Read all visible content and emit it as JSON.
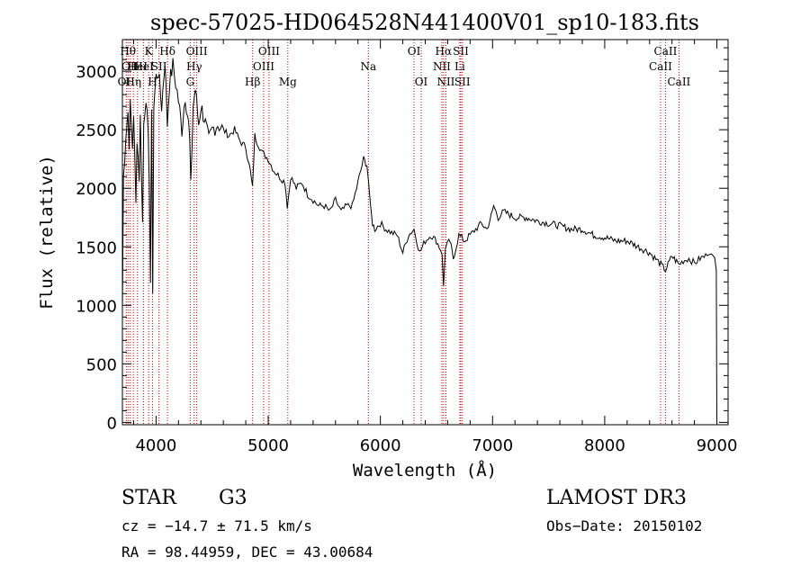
{
  "chart_data": {
    "type": "line",
    "title": "spec-57025-HD064528N441400V01_sp10-183.fits",
    "xlabel": "Wavelength (Å)",
    "ylabel": "Flux (relative)",
    "xlim": [
      3700,
      9100
    ],
    "ylim": [
      -20,
      3270
    ],
    "xticks": [
      "4000",
      "5000",
      "6000",
      "7000",
      "8000",
      "9000"
    ],
    "yticks": [
      "0",
      "500",
      "1000",
      "1500",
      "2000",
      "2500",
      "3000"
    ],
    "series": [
      {
        "x": [
          3700,
          3710,
          3730,
          3750,
          3760,
          3770,
          3790,
          3800,
          3820,
          3830,
          3850,
          3860,
          3880,
          3890,
          3910,
          3930,
          3940,
          3950,
          3960,
          3970,
          3980,
          4000,
          4020,
          4050,
          4080,
          4100,
          4120,
          4150,
          4200,
          4230,
          4260,
          4290,
          4300,
          4310,
          4330,
          4350,
          4380,
          4400,
          4430,
          4470,
          4500,
          4550,
          4600,
          4650,
          4700,
          4750,
          4800,
          4840,
          4860,
          4880,
          4900,
          4950,
          5000,
          5050,
          5100,
          5150,
          5170,
          5190,
          5200,
          5250,
          5300,
          5350,
          5400,
          5450,
          5500,
          5550,
          5600,
          5650,
          5700,
          5750,
          5800,
          5850,
          5880,
          5895,
          5910,
          5930,
          5950,
          6000,
          6050,
          6100,
          6150,
          6200,
          6250,
          6300,
          6350,
          6400,
          6450,
          6500,
          6550,
          6563,
          6580,
          6620,
          6650,
          6700,
          6750,
          6800,
          6850,
          6900,
          6950,
          7000,
          7010,
          7050,
          7100,
          7200,
          7300,
          7400,
          7500,
          7600,
          7700,
          7800,
          7900,
          8000,
          8100,
          8200,
          8300,
          8400,
          8500,
          8542,
          8600,
          8662,
          8700,
          8750,
          8800,
          8850,
          8900,
          8950,
          8980,
          8995,
          9000
        ],
        "y": [
          950,
          2100,
          2450,
          2650,
          2400,
          2700,
          2350,
          2650,
          1850,
          2450,
          2100,
          2600,
          1700,
          2550,
          2800,
          2400,
          2100,
          1200,
          2600,
          1150,
          2700,
          2950,
          3000,
          2700,
          3100,
          2550,
          2900,
          3050,
          2750,
          2500,
          2800,
          2550,
          2400,
          2000,
          2700,
          2850,
          2550,
          2700,
          2600,
          2400,
          2500,
          2550,
          2500,
          2450,
          2500,
          2400,
          2350,
          2150,
          2000,
          2450,
          2400,
          2300,
          2250,
          2150,
          2100,
          2050,
          1850,
          2000,
          2100,
          2000,
          2050,
          1950,
          1900,
          1850,
          1850,
          1800,
          1900,
          1800,
          1850,
          1850,
          2050,
          2250,
          2200,
          2050,
          1850,
          1700,
          1650,
          1700,
          1650,
          1620,
          1600,
          1450,
          1600,
          1650,
          1450,
          1550,
          1600,
          1550,
          1450,
          1150,
          1500,
          1550,
          1400,
          1600,
          1550,
          1600,
          1650,
          1700,
          1650,
          1800,
          1850,
          1750,
          1800,
          1750,
          1750,
          1720,
          1700,
          1680,
          1650,
          1650,
          1600,
          1580,
          1550,
          1550,
          1500,
          1450,
          1350,
          1300,
          1420,
          1350,
          1380,
          1400,
          1360,
          1400,
          1420,
          1440,
          1410,
          1300,
          0
        ]
      }
    ],
    "lines": [
      {
        "x": 3734,
        "name": "OII",
        "row": 2
      },
      {
        "x": 3750,
        "name": "Hθ",
        "row": 0
      },
      {
        "x": 3770,
        "name": "OII",
        "row": 1
      },
      {
        "x": 3798,
        "name": "Hη",
        "row": 2
      },
      {
        "x": 3835,
        "name": "HeI",
        "row": 1
      },
      {
        "x": 3889,
        "name": "HeI",
        "row": 1
      },
      {
        "x": 3934,
        "name": "K",
        "row": 0
      },
      {
        "x": 3969,
        "name": "H",
        "row": 2
      },
      {
        "x": 4026,
        "name": "SII",
        "row": 1
      },
      {
        "x": 4102,
        "name": "Hδ",
        "row": 0
      },
      {
        "x": 4305,
        "name": "G",
        "row": 2
      },
      {
        "x": 4340,
        "name": "Hγ",
        "row": 1
      },
      {
        "x": 4363,
        "name": "OIII",
        "row": 0
      },
      {
        "x": 4861,
        "name": "Hβ",
        "row": 2
      },
      {
        "x": 4959,
        "name": "OIII",
        "row": 1
      },
      {
        "x": 5007,
        "name": "OIII",
        "row": 0
      },
      {
        "x": 5175,
        "name": "Mg",
        "row": 2
      },
      {
        "x": 5893,
        "name": "Na",
        "row": 1
      },
      {
        "x": 6300,
        "name": "OI",
        "row": 0
      },
      {
        "x": 6364,
        "name": "OI",
        "row": 2
      },
      {
        "x": 6548,
        "name": "NII",
        "row": 1
      },
      {
        "x": 6563,
        "name": "Hα",
        "row": 0
      },
      {
        "x": 6584,
        "name": "NII",
        "row": 2
      },
      {
        "x": 6708,
        "name": "Li",
        "row": 1
      },
      {
        "x": 6717,
        "name": "SII",
        "row": 0
      },
      {
        "x": 6731,
        "name": "SII",
        "row": 2
      },
      {
        "x": 8498,
        "name": "CaII",
        "row": 1
      },
      {
        "x": 8542,
        "name": "CaII",
        "row": 0
      },
      {
        "x": 8662,
        "name": "CaII",
        "row": 2
      }
    ]
  },
  "info": {
    "object": "STAR",
    "subclass": "G3",
    "survey": "LAMOST DR3",
    "cz": "cz = −14.7 ± 71.5 km/s",
    "obs_date": "Obs−Date: 20150102",
    "coords": "RA =  98.44959, DEC =  43.00684"
  },
  "colors": {
    "lines": "#cc0000",
    "spectrum": "#000000",
    "axes": "#000000"
  }
}
